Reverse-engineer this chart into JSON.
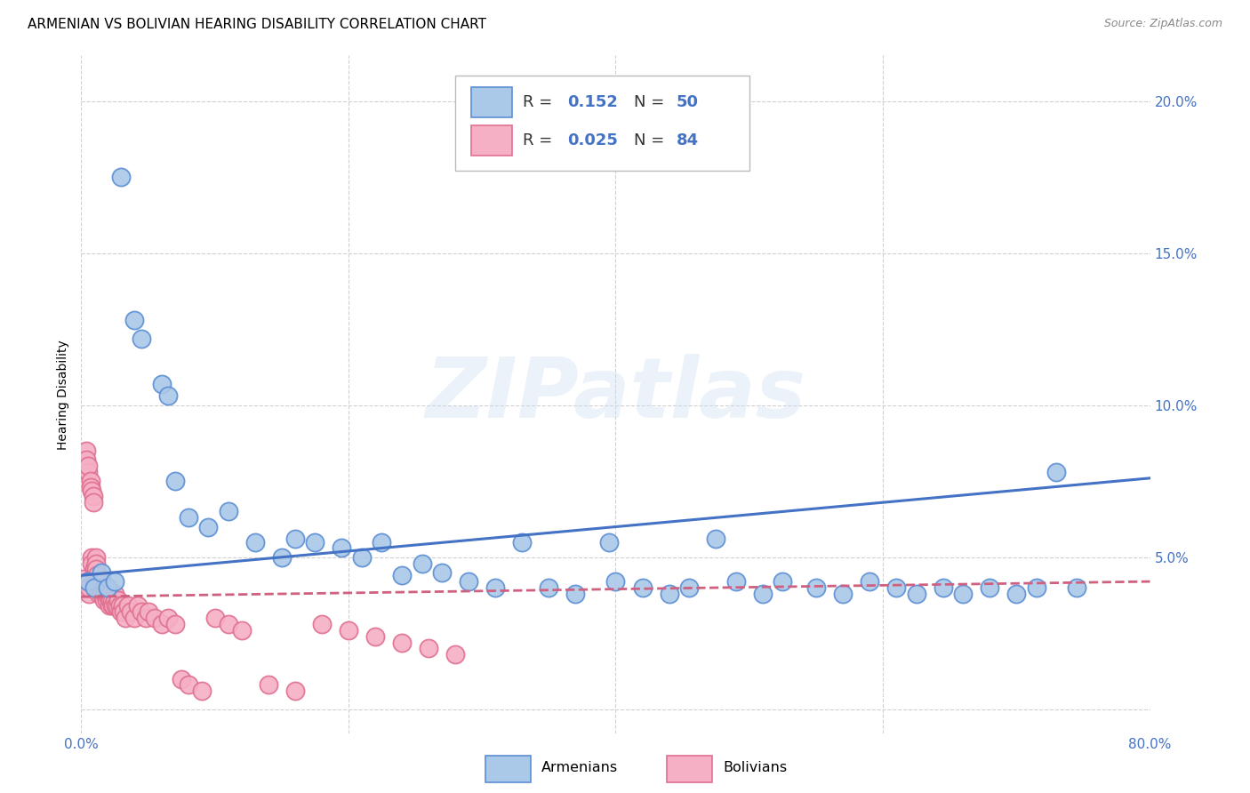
{
  "title": "ARMENIAN VS BOLIVIAN HEARING DISABILITY CORRELATION CHART",
  "source": "Source: ZipAtlas.com",
  "ylabel": "Hearing Disability",
  "xlim": [
    0.0,
    0.8
  ],
  "ylim": [
    -0.008,
    0.215
  ],
  "armenian_color": "#aac8e8",
  "bolivian_color": "#f5b0c5",
  "armenian_edge_color": "#5b8fd4",
  "bolivian_edge_color": "#e07090",
  "armenian_line_color": "#4472c4",
  "bolivian_line_color": "#d06080",
  "background_color": "#ffffff",
  "grid_color": "#d0d0d0",
  "watermark_text": "ZIPatlas",
  "armenian_x": [
    0.03,
    0.04,
    0.045,
    0.06,
    0.065,
    0.07,
    0.08,
    0.095,
    0.11,
    0.13,
    0.15,
    0.16,
    0.175,
    0.195,
    0.21,
    0.225,
    0.24,
    0.255,
    0.27,
    0.29,
    0.31,
    0.33,
    0.35,
    0.37,
    0.395,
    0.4,
    0.42,
    0.44,
    0.455,
    0.475,
    0.49,
    0.51,
    0.525,
    0.55,
    0.57,
    0.59,
    0.61,
    0.625,
    0.645,
    0.66,
    0.68,
    0.7,
    0.715,
    0.73,
    0.745,
    0.005,
    0.01,
    0.015,
    0.02,
    0.025
  ],
  "armenian_y": [
    0.175,
    0.128,
    0.122,
    0.107,
    0.103,
    0.075,
    0.063,
    0.06,
    0.065,
    0.055,
    0.05,
    0.056,
    0.055,
    0.053,
    0.05,
    0.055,
    0.044,
    0.048,
    0.045,
    0.042,
    0.04,
    0.055,
    0.04,
    0.038,
    0.055,
    0.042,
    0.04,
    0.038,
    0.04,
    0.056,
    0.042,
    0.038,
    0.042,
    0.04,
    0.038,
    0.042,
    0.04,
    0.038,
    0.04,
    0.038,
    0.04,
    0.038,
    0.04,
    0.078,
    0.04,
    0.042,
    0.04,
    0.045,
    0.04,
    0.042
  ],
  "bolivian_x": [
    0.002,
    0.003,
    0.004,
    0.004,
    0.005,
    0.005,
    0.005,
    0.006,
    0.006,
    0.007,
    0.007,
    0.008,
    0.008,
    0.008,
    0.009,
    0.009,
    0.01,
    0.01,
    0.01,
    0.011,
    0.011,
    0.011,
    0.012,
    0.012,
    0.012,
    0.013,
    0.013,
    0.014,
    0.014,
    0.015,
    0.015,
    0.015,
    0.016,
    0.016,
    0.017,
    0.017,
    0.018,
    0.018,
    0.019,
    0.019,
    0.02,
    0.02,
    0.021,
    0.021,
    0.022,
    0.022,
    0.023,
    0.023,
    0.024,
    0.025,
    0.025,
    0.026,
    0.027,
    0.028,
    0.029,
    0.03,
    0.031,
    0.032,
    0.033,
    0.035,
    0.037,
    0.04,
    0.042,
    0.045,
    0.048,
    0.05,
    0.055,
    0.06,
    0.065,
    0.07,
    0.075,
    0.08,
    0.09,
    0.1,
    0.11,
    0.12,
    0.14,
    0.16,
    0.18,
    0.2,
    0.22,
    0.24,
    0.26,
    0.28
  ],
  "bolivian_y": [
    0.043,
    0.04,
    0.085,
    0.082,
    0.078,
    0.08,
    0.042,
    0.038,
    0.04,
    0.075,
    0.073,
    0.072,
    0.05,
    0.048,
    0.07,
    0.068,
    0.046,
    0.044,
    0.042,
    0.05,
    0.048,
    0.046,
    0.044,
    0.042,
    0.04,
    0.04,
    0.038,
    0.042,
    0.04,
    0.038,
    0.04,
    0.038,
    0.042,
    0.04,
    0.038,
    0.036,
    0.04,
    0.038,
    0.036,
    0.038,
    0.04,
    0.038,
    0.036,
    0.034,
    0.038,
    0.036,
    0.034,
    0.036,
    0.034,
    0.038,
    0.036,
    0.034,
    0.034,
    0.036,
    0.034,
    0.032,
    0.034,
    0.032,
    0.03,
    0.034,
    0.032,
    0.03,
    0.034,
    0.032,
    0.03,
    0.032,
    0.03,
    0.028,
    0.03,
    0.028,
    0.01,
    0.008,
    0.006,
    0.03,
    0.028,
    0.026,
    0.008,
    0.006,
    0.028,
    0.026,
    0.024,
    0.022,
    0.02,
    0.018
  ],
  "arm_line_x0": 0.0,
  "arm_line_x1": 0.8,
  "arm_line_y0": 0.044,
  "arm_line_y1": 0.076,
  "bol_line_x0": 0.0,
  "bol_line_x1": 0.8,
  "bol_line_y0": 0.037,
  "bol_line_y1": 0.042
}
